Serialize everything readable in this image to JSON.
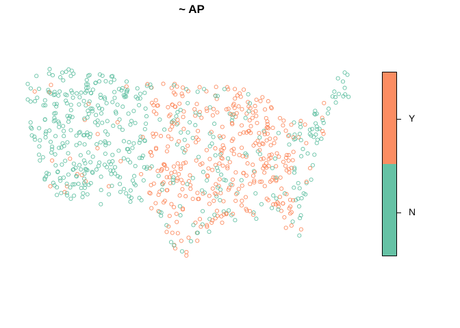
{
  "title": "~ AP",
  "legend": {
    "categories": [
      "Y",
      "N"
    ],
    "colors": {
      "Y": "#FC8D62",
      "N": "#66C2A5"
    }
  },
  "map_points": {
    "category_field": "AP",
    "points": []
  }
}
